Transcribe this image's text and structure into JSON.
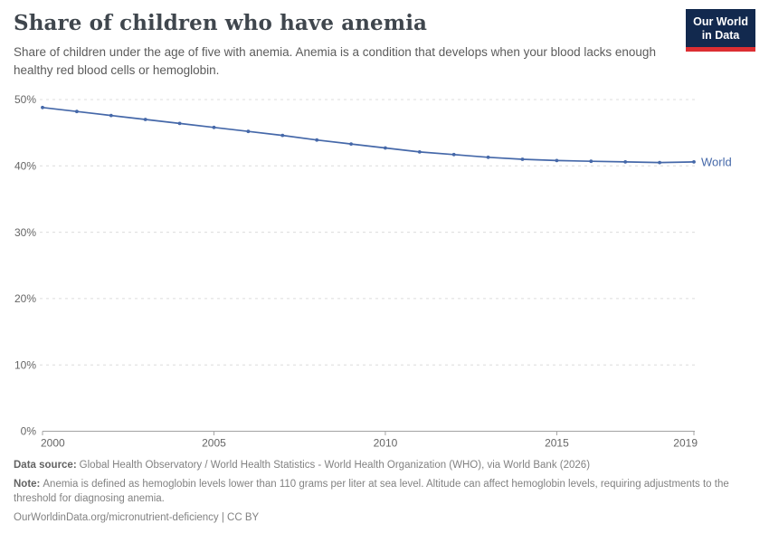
{
  "header": {
    "title": "Share of children who have anemia",
    "subtitle": "Share of children under the age of five with anemia. Anemia is a condition that develops when your blood lacks enough healthy red blood cells or hemoglobin.",
    "logo": {
      "line1": "Our World",
      "line2": "in Data"
    }
  },
  "chart_data": {
    "type": "line",
    "title": "Share of children who have anemia",
    "xlabel": "",
    "ylabel": "",
    "x": [
      2000,
      2001,
      2002,
      2003,
      2004,
      2005,
      2006,
      2007,
      2008,
      2009,
      2010,
      2011,
      2012,
      2013,
      2014,
      2015,
      2016,
      2017,
      2018,
      2019
    ],
    "series": [
      {
        "name": "World",
        "color": "#4568a9",
        "values": [
          48.8,
          48.2,
          47.6,
          47.0,
          46.4,
          45.8,
          45.2,
          44.6,
          43.9,
          43.3,
          42.7,
          42.1,
          41.7,
          41.3,
          41.0,
          40.8,
          40.7,
          40.6,
          40.5,
          40.6
        ]
      }
    ],
    "ylim": [
      0,
      50
    ],
    "xlim": [
      2000,
      2019
    ],
    "yticks": [
      {
        "value": 0,
        "label": "0%"
      },
      {
        "value": 10,
        "label": "10%"
      },
      {
        "value": 20,
        "label": "20%"
      },
      {
        "value": 30,
        "label": "30%"
      },
      {
        "value": 40,
        "label": "40%"
      },
      {
        "value": 50,
        "label": "50%"
      }
    ],
    "xticks": [
      2000,
      2005,
      2010,
      2015,
      2019
    ],
    "grid": "horizontal-dashed",
    "legend": "end-of-line-label"
  },
  "footer": {
    "data_source_label": "Data source:",
    "data_source": "Global Health Observatory / World Health Statistics - World Health Organization (WHO), via World Bank (2026)",
    "note_label": "Note:",
    "note": "Anemia is defined as hemoglobin levels lower than 110 grams per liter at sea level. Altitude can affect hemoglobin levels, requiring adjustments to the threshold for diagnosing anemia.",
    "cite": "OurWorldinData.org/micronutrient-deficiency | CC BY"
  },
  "colors": {
    "accent_line": "#4568a9",
    "grid": "#dcdcdc",
    "axis": "#a3a3a3",
    "tick_label": "#666666",
    "logo_bg": "#12294e",
    "logo_red": "#dc2e32"
  }
}
